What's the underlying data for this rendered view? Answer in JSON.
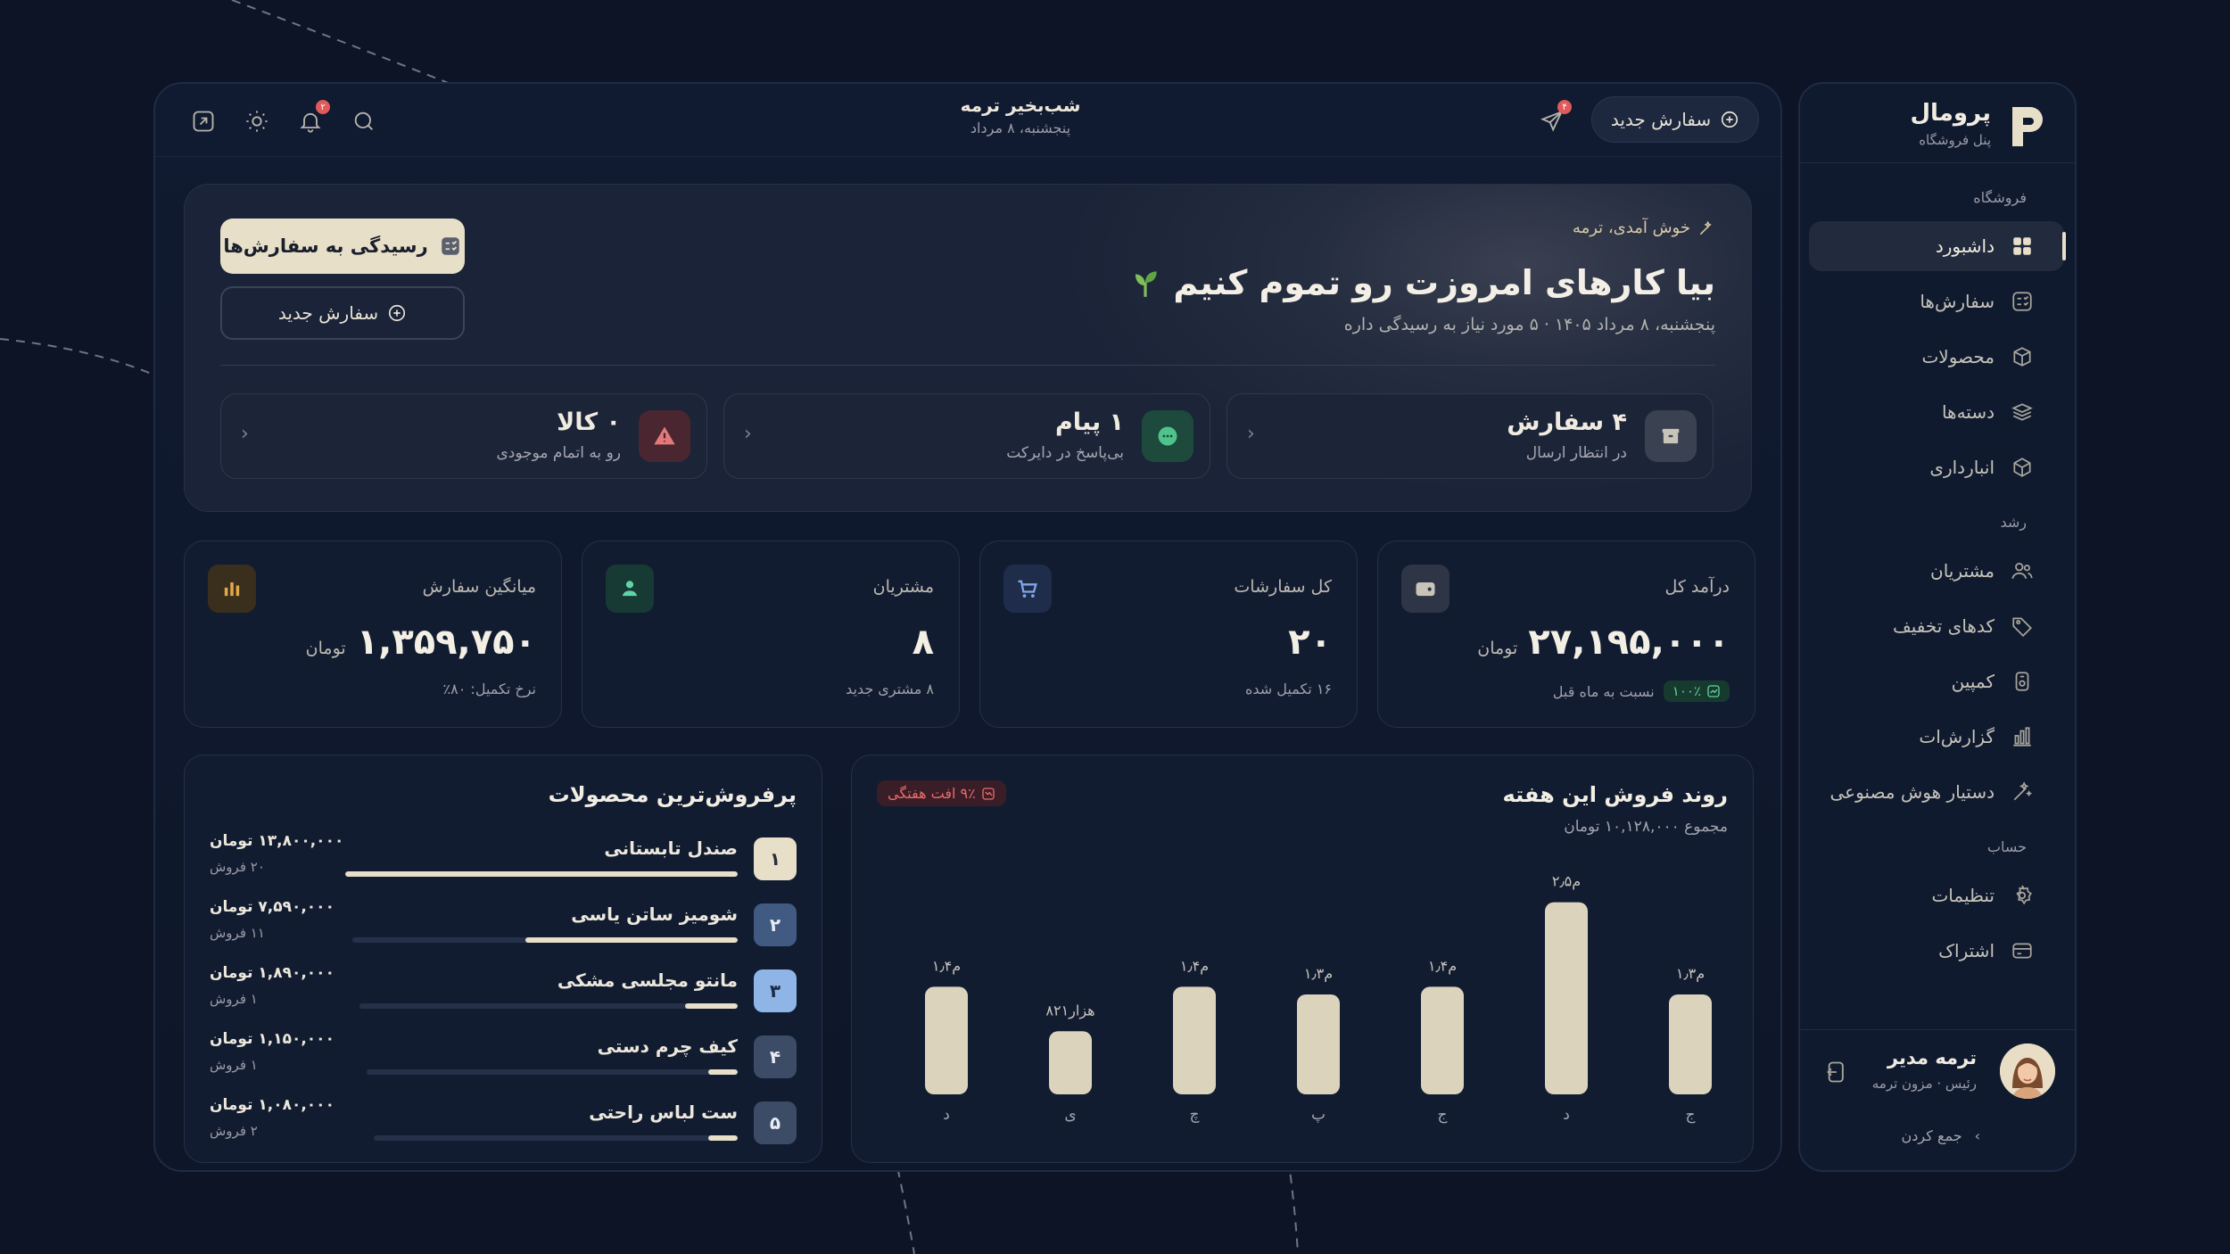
{
  "colors": {
    "background": "#0c1426",
    "accent": "#e8dfc8",
    "danger": "#e05a5a",
    "success": "#5fd49a"
  },
  "sidebar": {
    "brand": "پرومال",
    "tagline": "پنل فروشگاه",
    "groups": {
      "store": "فروشگاه",
      "growth": "رشد",
      "account": "حساب"
    },
    "items": [
      {
        "label": "داشبورد",
        "icon": "grid-icon",
        "active": true
      },
      {
        "label": "سفارش‌ها",
        "icon": "checklist-icon"
      },
      {
        "label": "محصولات",
        "icon": "box-icon"
      },
      {
        "label": "دسته‌ها",
        "icon": "layers-icon"
      },
      {
        "label": "انبارداری",
        "icon": "cube-icon"
      },
      {
        "label": "مشتریان",
        "icon": "users-icon"
      },
      {
        "label": "کدهای تخفیف",
        "icon": "tag-icon"
      },
      {
        "label": "کمپین",
        "icon": "campaign-icon"
      },
      {
        "label": "گزارش‌ات",
        "icon": "chart-icon"
      },
      {
        "label": "دستیار هوش مصنوعی",
        "icon": "magic-wand-icon"
      },
      {
        "label": "تنظیمات",
        "icon": "gear-icon"
      },
      {
        "label": "اشتراک",
        "icon": "card-icon"
      }
    ],
    "user": {
      "name": "ترمه مدیر",
      "role": "رئیس · مزون ترمه"
    },
    "collapse_label": "جمع کردن"
  },
  "topbar": {
    "greeting": "شب‌بخیر ترمه",
    "date": "پنجشنبه، ۸ مرداد",
    "new_order": "سفارش جدید",
    "notif_count": "۲",
    "msg_count": "۴"
  },
  "hero": {
    "welcome": "خوش آمدی، ترمه",
    "title": "بیا کارهای امروزت رو تموم کنیم",
    "subtitle": "پنجشنبه، ۸ مرداد ۱۴۰۵ · ۵ مورد نیاز به رسیدگی داره",
    "primary_button": "رسیدگی به سفارش‌ها",
    "secondary_button": "سفارش جدید",
    "cards": [
      {
        "headline": "۴ سفارش",
        "desc": "در انتظار ارسال",
        "icon": "package-icon"
      },
      {
        "headline": "۱ پیام",
        "desc": "بی‌پاسخ در دایرکت",
        "icon": "chat-icon"
      },
      {
        "headline": "۰ کالا",
        "desc": "رو به اتمام موجودی",
        "icon": "warning-icon"
      }
    ]
  },
  "stats": [
    {
      "label": "درآمد کل",
      "value": "۲۷,۱۹۵,۰۰۰",
      "unit": "تومان",
      "badge": "۱۰۰٪",
      "foot": "نسبت به ماه قبل",
      "icon": "wallet-icon"
    },
    {
      "label": "کل سفارشات",
      "value": "۲۰",
      "unit": "",
      "foot": "۱۶ تکمیل شده",
      "icon": "cart-icon"
    },
    {
      "label": "مشتریان",
      "value": "۸",
      "unit": "",
      "foot": "۸ مشتری جدید",
      "icon": "user-icon"
    },
    {
      "label": "میانگین سفارش",
      "value": "۱,۳۵۹,۷۵۰",
      "unit": "تومان",
      "foot": "نرخ تکمیل: ۸۰٪",
      "icon": "bar-chart-icon"
    }
  ],
  "sales_trend": {
    "title": "روند فروش این هفته",
    "subtitle": "مجموع ۱۰,۱۲۸,۰۰۰ تومان",
    "badge": "۹٪ افت هفتگی"
  },
  "chart_data": {
    "type": "bar",
    "categories": [
      "ج",
      "د",
      "ج",
      "پ",
      "چ",
      "ی",
      "د"
    ],
    "values": [
      1.3,
      2.5,
      1.4,
      1.3,
      1.4,
      0.821,
      1.4
    ],
    "value_labels": [
      "۱٫۳م",
      "۲٫۵م",
      "۱٫۴م",
      "۱٫۳م",
      "۱٫۴م",
      "۸۲۱هزار",
      "۱٫۴م"
    ],
    "title": "روند فروش این هفته",
    "xlabel": "",
    "ylabel": "",
    "ylim": [
      0,
      2.6
    ]
  },
  "top_products": {
    "title": "پرفروش‌ترین محصولات",
    "items": [
      {
        "rank": "۱",
        "name": "صندل تابستانی",
        "price": "۱۳,۸۰۰,۰۰۰ تومان",
        "sales": "۲۰ فروش",
        "share": 1.0
      },
      {
        "rank": "۲",
        "name": "شومیز ساتن یاسی",
        "price": "۷,۵۹۰,۰۰۰ تومان",
        "sales": "۱۱ فروش",
        "share": 0.55
      },
      {
        "rank": "۳",
        "name": "مانتو مجلسی مشکی",
        "price": "۱,۸۹۰,۰۰۰ تومان",
        "sales": "۱ فروش",
        "share": 0.14
      },
      {
        "rank": "۴",
        "name": "کیف چرم دستی",
        "price": "۱,۱۵۰,۰۰۰ تومان",
        "sales": "۱ فروش",
        "share": 0.08
      },
      {
        "rank": "۵",
        "name": "ست لباس راحتی",
        "price": "۱,۰۸۰,۰۰۰ تومان",
        "sales": "۲ فروش",
        "share": 0.08
      }
    ]
  }
}
